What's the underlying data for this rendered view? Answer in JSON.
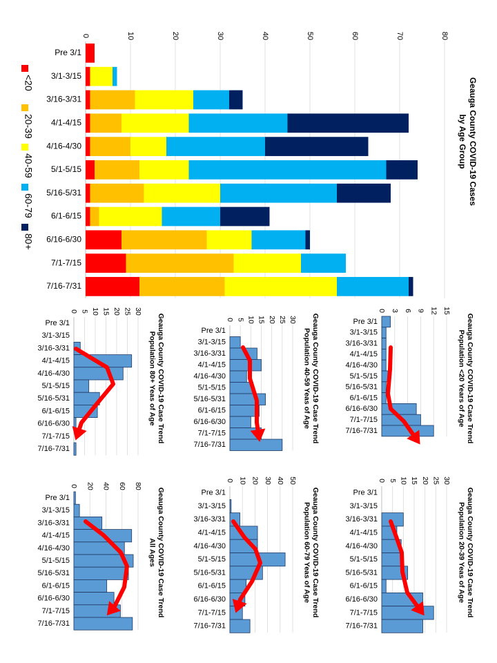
{
  "chart_data": [
    {
      "type": "bar",
      "stacked": true,
      "orientation": "horizontal",
      "title": "Geauga County COVID-19 Cases by Age Group",
      "categories": [
        "Pre 3/1",
        "3/1-3/15",
        "3/16-3/31",
        "4/1-4/15",
        "4/16-4/30",
        "5/1-5/15",
        "5/16-5/31",
        "6/1-6/15",
        "6/16-6/30",
        "7/1-7/15",
        "7/16-7/31"
      ],
      "xlim": [
        0,
        80
      ],
      "xticks": [
        "0",
        "10",
        "20",
        "30",
        "40",
        "50",
        "60",
        "70",
        "80"
      ],
      "legend_position": "left",
      "series": [
        {
          "name": "<20",
          "color": "#FF0000",
          "values": [
            2,
            1,
            1,
            1,
            1,
            2,
            1,
            1,
            8,
            9,
            12
          ]
        },
        {
          "name": "20-39",
          "color": "#FFC000",
          "values": [
            0,
            0,
            10,
            7,
            9,
            10,
            12,
            2,
            19,
            24,
            19
          ]
        },
        {
          "name": "40-59",
          "color": "#FFFF00",
          "values": [
            0,
            5,
            13,
            15,
            8,
            11,
            17,
            14,
            10,
            15,
            25
          ]
        },
        {
          "name": "60-79",
          "color": "#00B0F0",
          "values": [
            0,
            1,
            8,
            22,
            22,
            44,
            26,
            13,
            12,
            10,
            16
          ]
        },
        {
          "name": "80+",
          "color": "#002060",
          "values": [
            0,
            0,
            3,
            27,
            23,
            7,
            12,
            11,
            1,
            0,
            1
          ]
        }
      ]
    },
    {
      "type": "bar",
      "title": "Geauga County COVID-19 Case Trend",
      "subtitle": "Population <20 Years of Age",
      "categories": [
        "Pre 3/1",
        "3/1-3/15",
        "3/16-3/31",
        "4/1-4/15",
        "4/16-4/30",
        "5/1-5/15",
        "5/16-5/31",
        "6/1-6/15",
        "6/16-6/30",
        "7/1-7/15",
        "7/16-7/31"
      ],
      "values": [
        2,
        1,
        1,
        1,
        1,
        2,
        1,
        1,
        8,
        9,
        12
      ],
      "xlim": [
        0,
        15
      ],
      "xticks": [
        "0",
        "3",
        "6",
        "9",
        "12",
        "15"
      ],
      "color": "#5B9BD5"
    },
    {
      "type": "bar",
      "title": "Geauga County COVID-19 Case Trend",
      "subtitle": "Population 20-39 Yeas of Age",
      "categories": [
        "Pre 3/1",
        "3/1-3/15",
        "3/16-3/31",
        "4/1-4/15",
        "4/16-4/30",
        "5/1-5/15",
        "5/16-5/31",
        "6/1-6/15",
        "6/16-6/30",
        "7/1-7/15",
        "7/16-7/31"
      ],
      "values": [
        0,
        0,
        10,
        7,
        9,
        10,
        12,
        2,
        19,
        24,
        19
      ],
      "xlim": [
        0,
        30
      ],
      "xticks": [
        "0",
        "5",
        "10",
        "15",
        "20",
        "25",
        "30"
      ],
      "color": "#5B9BD5"
    },
    {
      "type": "bar",
      "title": "Geauga County COVID-19 Case Trend",
      "subtitle": "Population 40-59 Yeas of Age",
      "categories": [
        "Pre 3/1",
        "3/1-3/15",
        "3/16-3/31",
        "4/1-4/15",
        "4/16-4/30",
        "5/1-5/15",
        "5/16-5/31",
        "6/1-6/15",
        "6/16-6/30",
        "7/1-7/15",
        "7/16-7/31"
      ],
      "values": [
        0,
        5,
        13,
        15,
        8,
        11,
        17,
        14,
        10,
        15,
        25
      ],
      "xlim": [
        0,
        30
      ],
      "xticks": [
        "0",
        "5",
        "10",
        "15",
        "20",
        "25",
        "30"
      ],
      "color": "#5B9BD5"
    },
    {
      "type": "bar",
      "title": "Geauga County COVID-19 Case Trend",
      "subtitle": "Population 60-79 Yeas of Age",
      "categories": [
        "Pre 3/1",
        "3/1-3/15",
        "3/16-3/31",
        "4/1-4/15",
        "4/16-4/30",
        "5/1-5/15",
        "5/16-5/31",
        "6/1-6/15",
        "6/16-6/30",
        "7/1-7/15",
        "7/16-7/31"
      ],
      "values": [
        0,
        1,
        8,
        22,
        22,
        44,
        26,
        13,
        12,
        10,
        16
      ],
      "xlim": [
        0,
        50
      ],
      "xticks": [
        "0",
        "10",
        "20",
        "30",
        "40",
        "50"
      ],
      "color": "#5B9BD5"
    },
    {
      "type": "bar",
      "title": "Geauga County COVID-19 Case Trend",
      "subtitle": "Population 80+ Yeas of Age",
      "categories": [
        "Pre 3/1",
        "3/1-3/15",
        "3/16-3/31",
        "4/1-4/15",
        "4/16-4/30",
        "5/1-5/15",
        "5/16-5/31",
        "6/1-6/15",
        "6/16-6/30",
        "7/1-7/15",
        "7/16-7/31"
      ],
      "values": [
        0,
        0,
        3,
        27,
        23,
        7,
        12,
        11,
        1,
        0,
        1
      ],
      "xlim": [
        0,
        30
      ],
      "xticks": [
        "0",
        "5",
        "10",
        "15",
        "20",
        "25",
        "30"
      ],
      "color": "#5B9BD5"
    },
    {
      "type": "bar",
      "title": "Geauga County COVID-19 Case Trend",
      "subtitle": "All Ages",
      "categories": [
        "Pre 3/1",
        "3/1-3/15",
        "3/16-3/31",
        "4/1-4/15",
        "4/16-4/30",
        "5/1-5/15",
        "5/16-5/31",
        "6/1-6/15",
        "6/16-6/30",
        "7/1-7/15",
        "7/16-7/31"
      ],
      "values": [
        2,
        7,
        35,
        72,
        63,
        74,
        68,
        41,
        50,
        58,
        73
      ],
      "xlim": [
        0,
        80
      ],
      "xticks": [
        "0",
        "20",
        "40",
        "60",
        "80"
      ],
      "color": "#5B9BD5"
    }
  ],
  "colors": {
    "trend_arrow": "#FF0000",
    "bar_outline": "#1F3864"
  }
}
